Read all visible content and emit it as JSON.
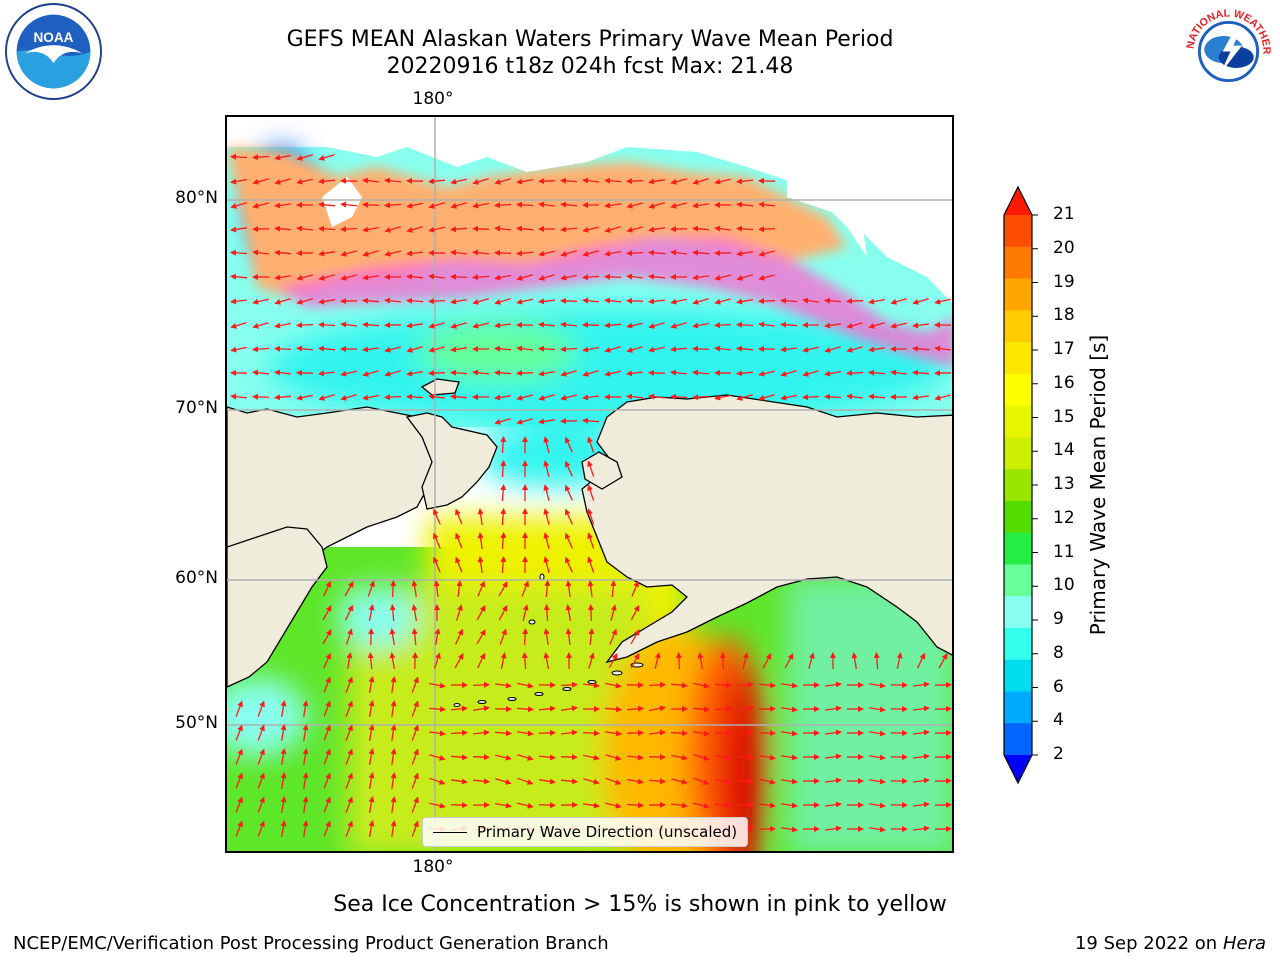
{
  "title": {
    "line1": "GEFS MEAN Alaskan Waters Primary Wave Mean Period",
    "line2": "20220916 t18z 024h fcst   Max: 21.48"
  },
  "map": {
    "lat_labels": [
      "80°N",
      "70°N",
      "60°N",
      "50°N"
    ],
    "lon_label_top": "180°",
    "lon_label_bottom": "180°",
    "legend_text": "Primary Wave Direction (unscaled)",
    "land_color": "#efecdc",
    "arrow_color": "#ff1a1a",
    "coastline_color": "#000000"
  },
  "colorbar": {
    "label": "Primary Wave Mean Period [s]",
    "ticks": [
      "21",
      "20",
      "19",
      "18",
      "17",
      "16",
      "15",
      "14",
      "13",
      "12",
      "11",
      "10",
      "9",
      "8",
      "6",
      "4",
      "2"
    ],
    "colors": [
      "#ff1a00",
      "#ff4d00",
      "#ff7a00",
      "#ffa500",
      "#ffcc00",
      "#ffe600",
      "#ffff00",
      "#e6f500",
      "#ccee00",
      "#99e600",
      "#55dd00",
      "#22ee44",
      "#66ff99",
      "#88ffee",
      "#33ffee",
      "#00ddee",
      "#00aaff",
      "#0066ff",
      "#0000ff"
    ]
  },
  "footer": {
    "sea_ice": "Sea Ice Concentration > 15% is shown in pink to yellow",
    "left": "NCEP/EMC/Verification Post Processing Product Generation Branch",
    "date": "19 Sep 2022 on",
    "host": "Hera"
  },
  "logos": {
    "left": "NOAA",
    "right": "NATIONAL WEATHER SERVICE"
  }
}
